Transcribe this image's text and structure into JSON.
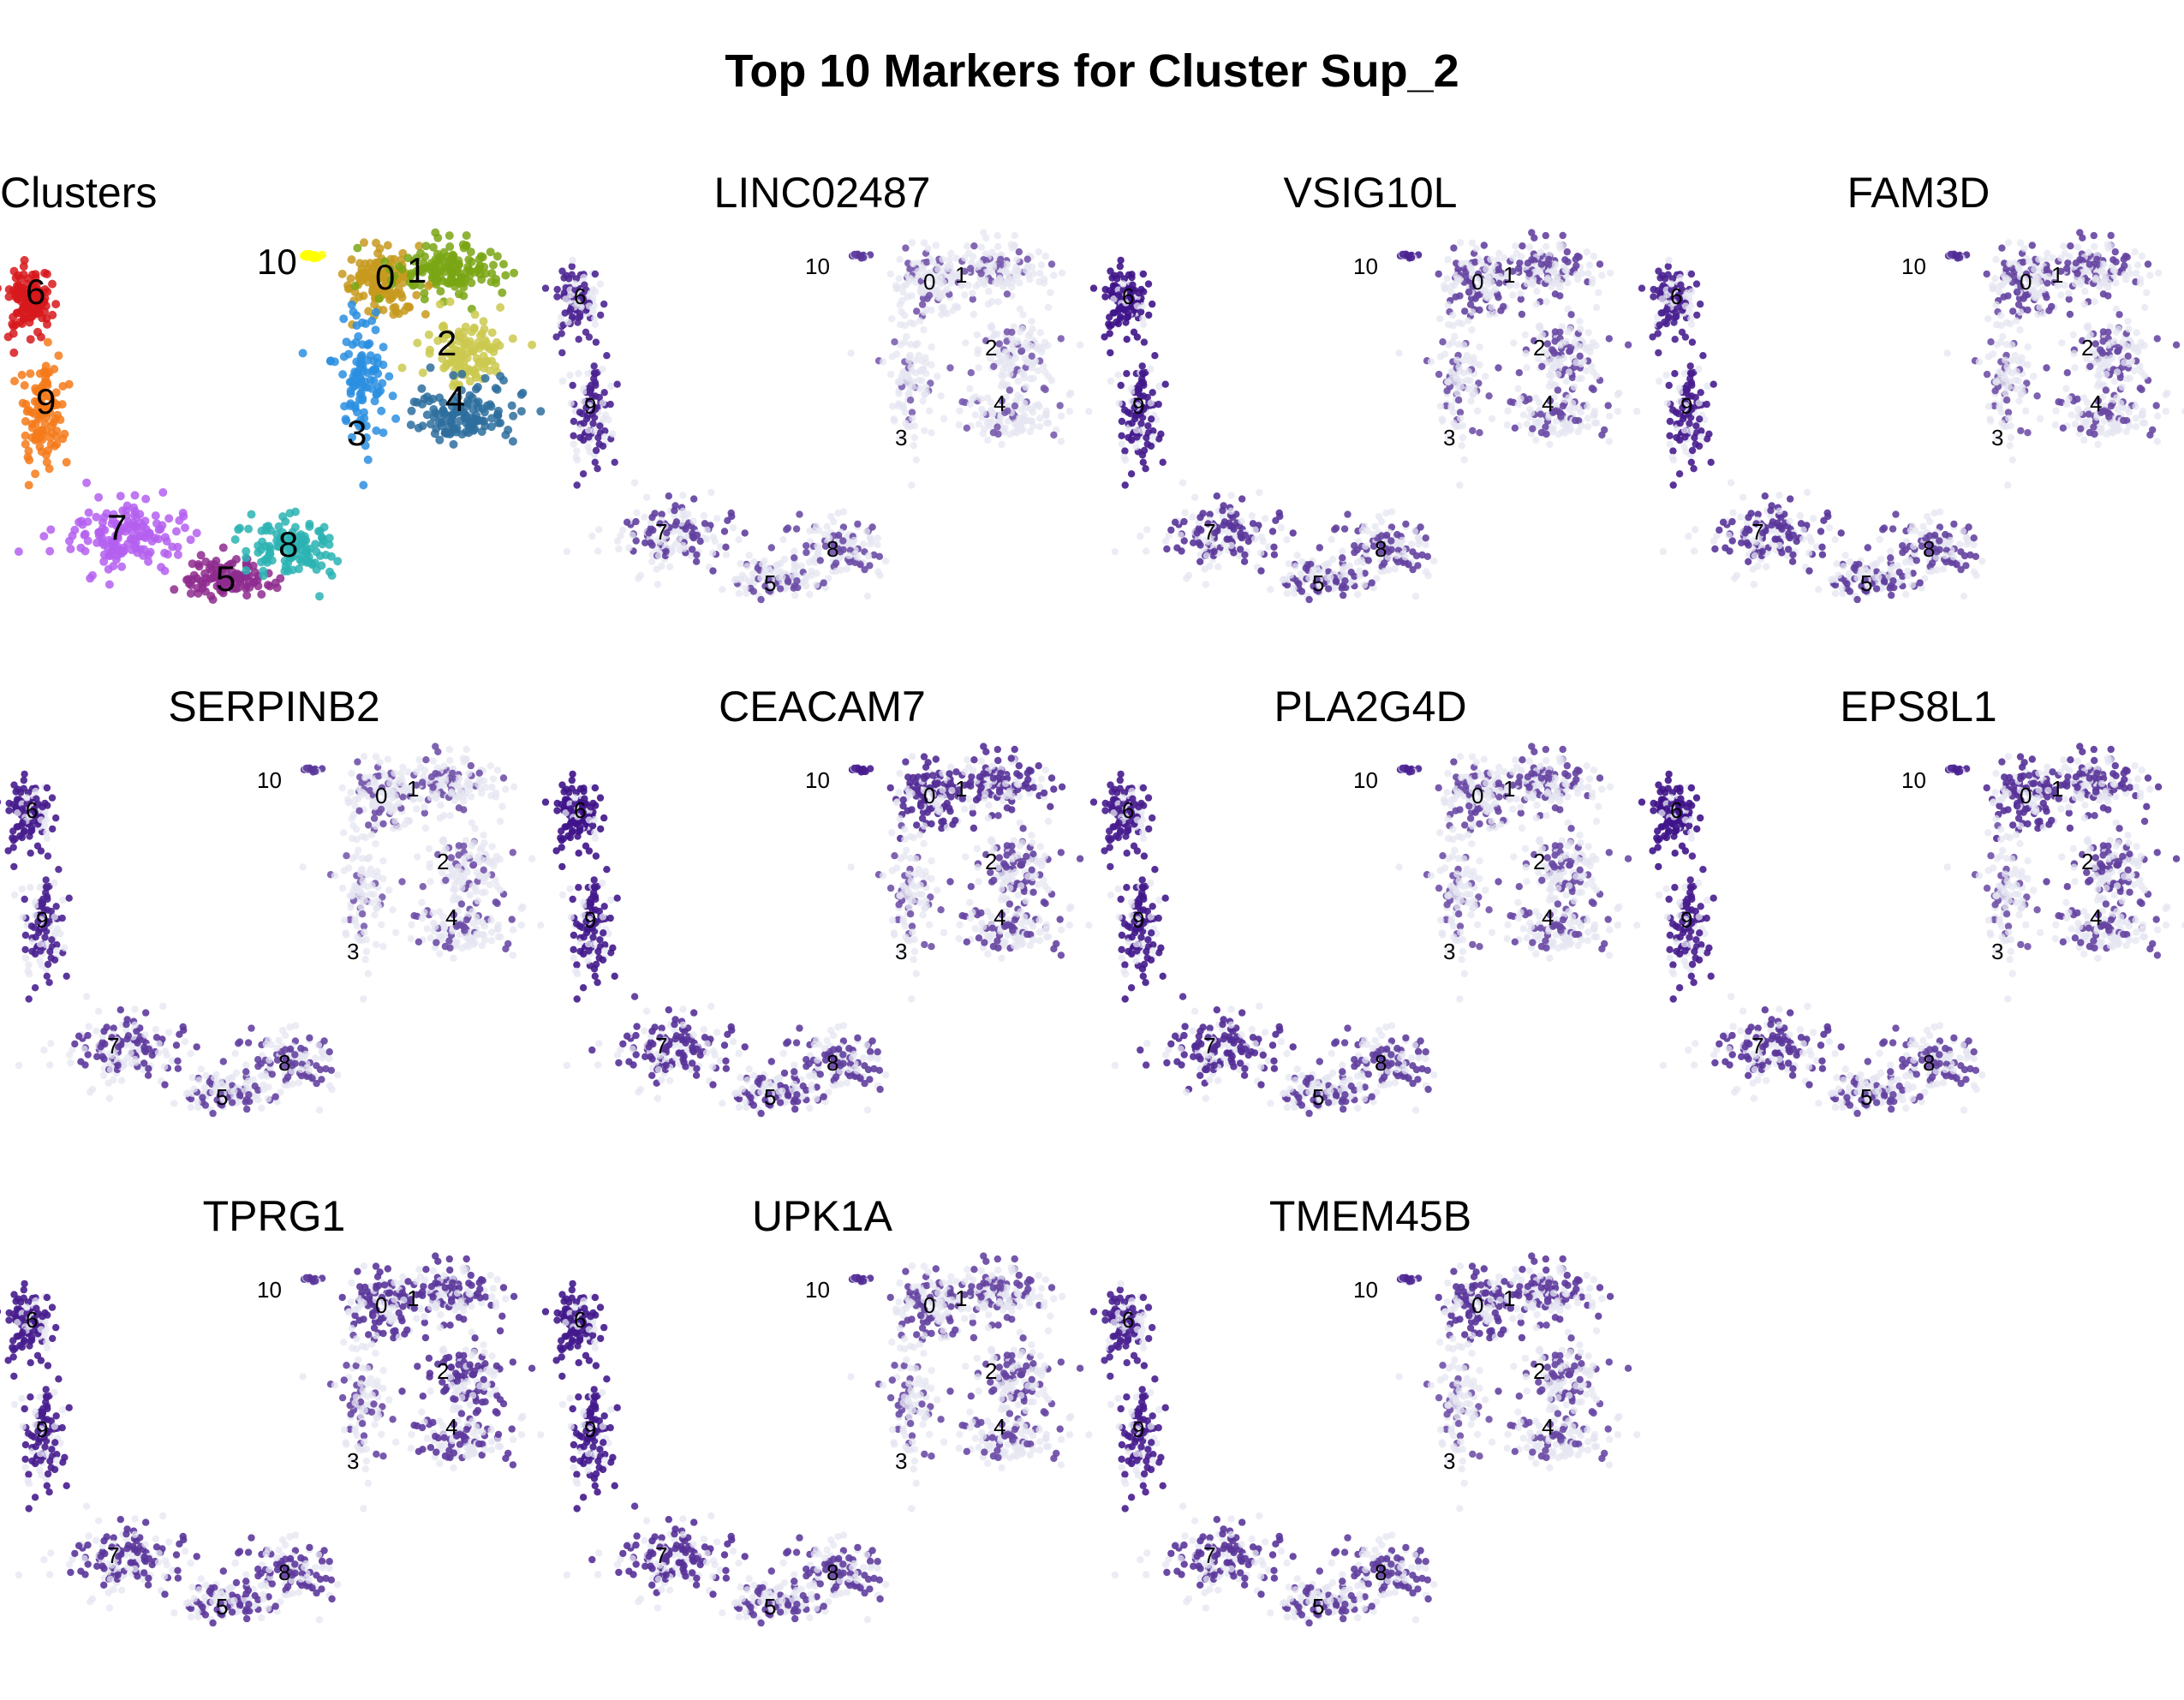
{
  "title": "Top 10 Markers for Cluster Sup_2",
  "chart_data": {
    "type": "scatter",
    "description_panels": [
      {
        "title": "Clusters",
        "kind": "clusters"
      },
      {
        "title": "LINC02487",
        "kind": "feature"
      },
      {
        "title": "VSIG10L",
        "kind": "feature"
      },
      {
        "title": "FAM3D",
        "kind": "feature"
      },
      {
        "title": "SERPINB2",
        "kind": "feature"
      },
      {
        "title": "CEACAM7",
        "kind": "feature"
      },
      {
        "title": "PLA2G4D",
        "kind": "feature"
      },
      {
        "title": "EPS8L1",
        "kind": "feature"
      },
      {
        "title": "TPRG1",
        "kind": "feature"
      },
      {
        "title": "UPK1A",
        "kind": "feature"
      },
      {
        "title": "TMEM45B",
        "kind": "feature"
      }
    ],
    "clusters": [
      "0",
      "1",
      "2",
      "3",
      "4",
      "5",
      "6",
      "7",
      "8",
      "9",
      "10"
    ],
    "cluster_colors": {
      "0": "#c79a1e",
      "1": "#7aa614",
      "2": "#cbc94f",
      "3": "#2b8fe0",
      "4": "#2e6f9e",
      "5": "#8e2c8e",
      "6": "#d7191c",
      "7": "#b45ff0",
      "8": "#2bb3b3",
      "9": "#f57a1a",
      "10": "#ffff00"
    },
    "expression_colors": {
      "low": "#e6e5f2",
      "high": "#3b0f87"
    },
    "panel_expression": {
      "LINC02487": {
        "0": 0.25,
        "1": 0.25,
        "2": 0.2,
        "3": 0.15,
        "4": 0.2,
        "5": 0.35,
        "6": 0.75,
        "7": 0.5,
        "8": 0.35,
        "9": 0.8,
        "10": 0.6
      },
      "VSIG10L": {
        "0": 0.45,
        "1": 0.45,
        "2": 0.4,
        "3": 0.3,
        "4": 0.4,
        "5": 0.5,
        "6": 0.95,
        "7": 0.6,
        "8": 0.45,
        "9": 0.9,
        "10": 0.8
      },
      "FAM3D": {
        "0": 0.45,
        "1": 0.45,
        "2": 0.4,
        "3": 0.3,
        "4": 0.4,
        "5": 0.5,
        "6": 0.8,
        "7": 0.6,
        "8": 0.45,
        "9": 0.85,
        "10": 0.7
      },
      "SERPINB2": {
        "0": 0.3,
        "1": 0.3,
        "2": 0.25,
        "3": 0.2,
        "4": 0.35,
        "5": 0.45,
        "6": 0.85,
        "7": 0.55,
        "8": 0.45,
        "9": 0.8,
        "10": 0.6
      },
      "CEACAM7": {
        "0": 0.7,
        "1": 0.65,
        "2": 0.45,
        "3": 0.3,
        "4": 0.45,
        "5": 0.55,
        "6": 0.95,
        "7": 0.65,
        "8": 0.5,
        "9": 0.9,
        "10": 0.85
      },
      "PLA2G4D": {
        "0": 0.4,
        "1": 0.45,
        "2": 0.4,
        "3": 0.3,
        "4": 0.4,
        "5": 0.5,
        "6": 0.85,
        "7": 0.7,
        "8": 0.5,
        "9": 0.9,
        "10": 0.8
      },
      "EPS8L1": {
        "0": 0.65,
        "1": 0.6,
        "2": 0.5,
        "3": 0.3,
        "4": 0.45,
        "5": 0.45,
        "6": 0.95,
        "7": 0.6,
        "8": 0.45,
        "9": 0.85,
        "10": 0.8
      },
      "TPRG1": {
        "0": 0.6,
        "1": 0.6,
        "2": 0.6,
        "3": 0.4,
        "4": 0.55,
        "5": 0.55,
        "6": 0.85,
        "7": 0.6,
        "8": 0.55,
        "9": 0.85,
        "10": 0.6
      },
      "UPK1A": {
        "0": 0.45,
        "1": 0.45,
        "2": 0.45,
        "3": 0.35,
        "4": 0.4,
        "5": 0.5,
        "6": 0.9,
        "7": 0.65,
        "8": 0.5,
        "9": 0.9,
        "10": 0.7
      },
      "TMEM45B": {
        "0": 0.6,
        "1": 0.55,
        "2": 0.45,
        "3": 0.3,
        "4": 0.4,
        "5": 0.5,
        "6": 0.8,
        "7": 0.6,
        "8": 0.5,
        "9": 0.85,
        "10": 0.75
      }
    },
    "grid": false,
    "legend": "none",
    "xlabel": "",
    "ylabel": ""
  }
}
